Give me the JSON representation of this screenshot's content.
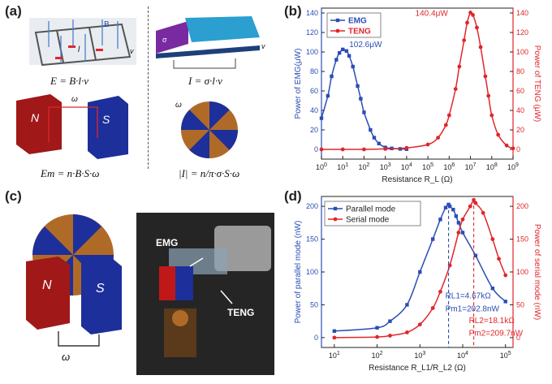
{
  "panel_labels": {
    "a": "(a)",
    "b": "(b)",
    "c": "(c)",
    "d": "(d)"
  },
  "panel_a": {
    "eq_emg_top": "E = B·l·v",
    "eq_teng_top": "I = σ·l·v",
    "eq_emg_bottom": "Em = n·B·S·ω",
    "eq_teng_bottom": "|I| = n/π·σ·S·ω",
    "magnet_n": "N",
    "magnet_s": "S",
    "field_label": "B",
    "length_label": "l",
    "velocity_label": "v",
    "omega_label": "ω",
    "sigma_label": "σ"
  },
  "panel_c": {
    "magnet_n": "N",
    "magnet_s": "S",
    "omega_label": "ω",
    "photo_emg_label": "EMG",
    "photo_teng_label": "TENG"
  },
  "colors": {
    "emg": "#2a4db5",
    "teng": "#e0262b",
    "axis": "#222222"
  },
  "chart_data": [
    {
      "type": "scatter",
      "panel": "b",
      "xlabel": "Resistance R_L (Ω)",
      "ylabel_left": "Power of EMG(μW)",
      "ylabel_right": "Power of TENG (μW)",
      "x_scale": "log",
      "xlim": [
        1,
        1000000000
      ],
      "ylim_left": [
        -10,
        145
      ],
      "ylim_right": [
        -10,
        145
      ],
      "x_ticks": [
        1,
        10,
        100,
        1000,
        10000,
        100000,
        1000000,
        10000000,
        100000000,
        1000000000
      ],
      "y_ticks": [
        0,
        20,
        40,
        60,
        80,
        100,
        120,
        140
      ],
      "legend": "top-left",
      "series": [
        {
          "name": "EMG",
          "axis": "left",
          "x": [
            1,
            2,
            3,
            5,
            7,
            10,
            15,
            20,
            30,
            50,
            70,
            100,
            200,
            300,
            500,
            1000,
            2000,
            5000,
            10000
          ],
          "y": [
            32,
            55,
            75,
            92,
            99,
            102.6,
            101,
            96,
            85,
            65,
            52,
            38,
            20,
            12,
            6,
            2,
            1,
            0.5,
            0.2
          ]
        },
        {
          "name": "TENG",
          "axis": "right",
          "x": [
            1,
            10,
            100,
            1000,
            10000,
            100000,
            300000,
            700000,
            1000000,
            2000000,
            3000000,
            5000000,
            7000000,
            10000000,
            13000000,
            20000000,
            30000000,
            50000000,
            70000000,
            100000000,
            200000000,
            500000000,
            1000000000
          ],
          "y": [
            0,
            0,
            0,
            0.5,
            1.5,
            5,
            12,
            25,
            35,
            62,
            85,
            112,
            130,
            140.4,
            138,
            125,
            105,
            75,
            55,
            35,
            15,
            4,
            1
          ]
        }
      ],
      "annotations": [
        "102.6μW",
        "140.4μW"
      ]
    },
    {
      "type": "scatter",
      "panel": "d",
      "xlabel": "Resistance R_L1/R_L2 (Ω)",
      "ylabel_left": "Power of parallel mode (nW)",
      "ylabel_right": "Power of serial mode (nW)",
      "x_scale": "log",
      "xlim": [
        5,
        150000
      ],
      "ylim_left": [
        -15,
        215
      ],
      "ylim_right": [
        -15,
        215
      ],
      "x_ticks": [
        10,
        100,
        1000,
        10000,
        100000
      ],
      "y_ticks": [
        0,
        50,
        100,
        150,
        200
      ],
      "legend": "top-left",
      "series": [
        {
          "name": "Parallel mode",
          "axis": "left",
          "x": [
            10,
            100,
            200,
            500,
            1000,
            2000,
            3000,
            4000,
            4670,
            5000,
            6000,
            7000,
            8000,
            10000,
            20000,
            50000,
            100000
          ],
          "y": [
            10,
            15,
            25,
            50,
            100,
            150,
            180,
            198,
            202.8,
            200,
            195,
            185,
            175,
            160,
            125,
            75,
            55
          ]
        },
        {
          "name": "Serial mode",
          "axis": "right",
          "x": [
            10,
            100,
            200,
            500,
            1000,
            2000,
            3000,
            5000,
            8000,
            10000,
            15000,
            18100,
            20000,
            30000,
            50000,
            70000,
            100000
          ],
          "y": [
            0,
            1,
            3,
            8,
            20,
            45,
            70,
            110,
            160,
            180,
            200,
            209.7,
            205,
            190,
            150,
            120,
            95
          ]
        }
      ],
      "annotations": [
        "RL1=4.67kΩ",
        "Pm1=202.8nW",
        "RL2=18.1kΩ",
        "Pm2=209.7nW"
      ]
    }
  ]
}
